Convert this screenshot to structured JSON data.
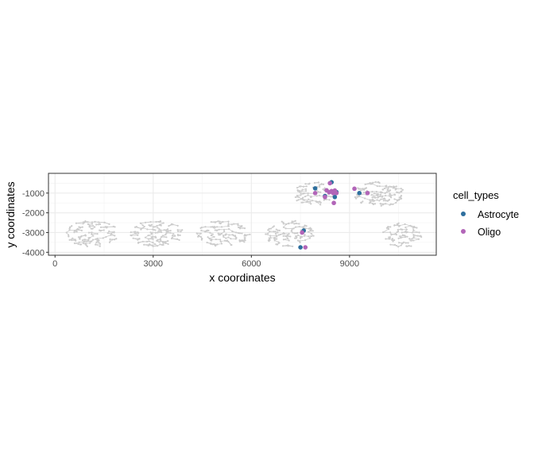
{
  "chart_data": {
    "type": "scatter",
    "xlabel": "x coordinates",
    "ylabel": "y coordinates",
    "xlim": [
      -200,
      11650
    ],
    "ylim": [
      -4150,
      0
    ],
    "x_ticks": [
      0,
      3000,
      6000,
      9000
    ],
    "y_ticks": [
      -1000,
      -2000,
      -3000,
      -4000
    ],
    "grid": true,
    "legend": {
      "title": "cell_types",
      "position": "right"
    },
    "background_network": {
      "color": "#cccccc",
      "clusters": [
        {
          "cx": 1150,
          "cy": -3050,
          "rx": 820,
          "ry": 670,
          "n": 120
        },
        {
          "cx": 3100,
          "cy": -3050,
          "rx": 820,
          "ry": 670,
          "n": 120
        },
        {
          "cx": 5150,
          "cy": -3050,
          "rx": 820,
          "ry": 670,
          "n": 120
        },
        {
          "cx": 7150,
          "cy": -3050,
          "rx": 780,
          "ry": 670,
          "n": 110
        },
        {
          "cx": 7900,
          "cy": -1050,
          "rx": 620,
          "ry": 620,
          "n": 90
        },
        {
          "cx": 9900,
          "cy": -1050,
          "rx": 800,
          "ry": 620,
          "n": 140
        },
        {
          "cx": 10600,
          "cy": -3150,
          "rx": 640,
          "ry": 640,
          "n": 90
        }
      ]
    },
    "series": [
      {
        "name": "Astrocyte",
        "color": "#2e6f9e",
        "points": [
          [
            7950,
            -760
          ],
          [
            8450,
            -450
          ],
          [
            8250,
            -1150
          ],
          [
            8550,
            -1200
          ],
          [
            8600,
            -950
          ],
          [
            9300,
            -1000
          ],
          [
            7600,
            -2900
          ],
          [
            7500,
            -3750
          ]
        ]
      },
      {
        "name": "Oligo",
        "color": "#b265b8",
        "points": [
          [
            8400,
            -500
          ],
          [
            8300,
            -860
          ],
          [
            8380,
            -960
          ],
          [
            8450,
            -900
          ],
          [
            8500,
            -1000
          ],
          [
            8550,
            -870
          ],
          [
            8600,
            -1000
          ],
          [
            8520,
            -1500
          ],
          [
            8250,
            -1200
          ],
          [
            7950,
            -1000
          ],
          [
            9150,
            -780
          ],
          [
            9550,
            -1000
          ],
          [
            7550,
            -3000
          ],
          [
            7650,
            -3750
          ]
        ]
      }
    ]
  }
}
